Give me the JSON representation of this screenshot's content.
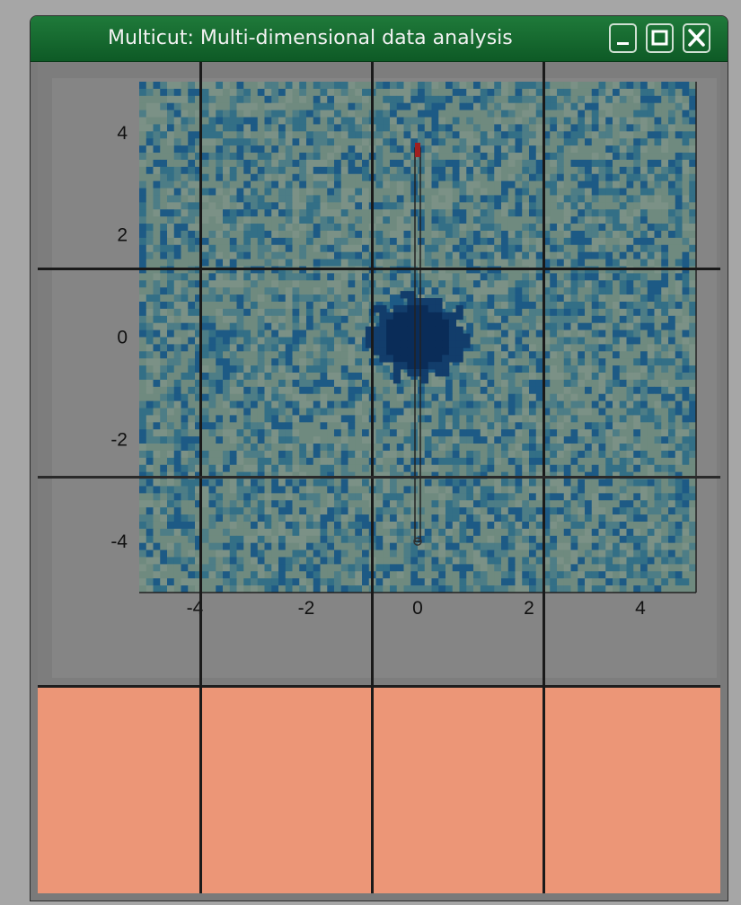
{
  "window": {
    "title": "Multicut: Multi-dimensional data analysis",
    "minimize_icon": "minimize-icon",
    "maximize_icon": "maximize-icon",
    "close_icon": "close-icon"
  },
  "plot": {
    "type": "heatmap",
    "colors": {
      "noise_light": "#6f8a7f",
      "noise_mid": "#336f86",
      "noise_dark": "#1d5a85",
      "blob": "#0a2c58",
      "marker": "#a02020",
      "panel": "#ec9677"
    },
    "chart_data": {
      "type": "heatmap",
      "xlim": [
        -5,
        5
      ],
      "ylim": [
        -5,
        5
      ],
      "x_ticks": [
        "-4",
        "-2",
        "0",
        "2",
        "4"
      ],
      "y_ticks": [
        "4",
        "2",
        "0",
        "-2",
        "-4"
      ],
      "features": [
        {
          "kind": "blob",
          "center": [
            0,
            0
          ],
          "radius": 0.7
        }
      ],
      "cut_line": {
        "x": 0,
        "y_start": 3.7,
        "y_end": -4
      }
    }
  }
}
